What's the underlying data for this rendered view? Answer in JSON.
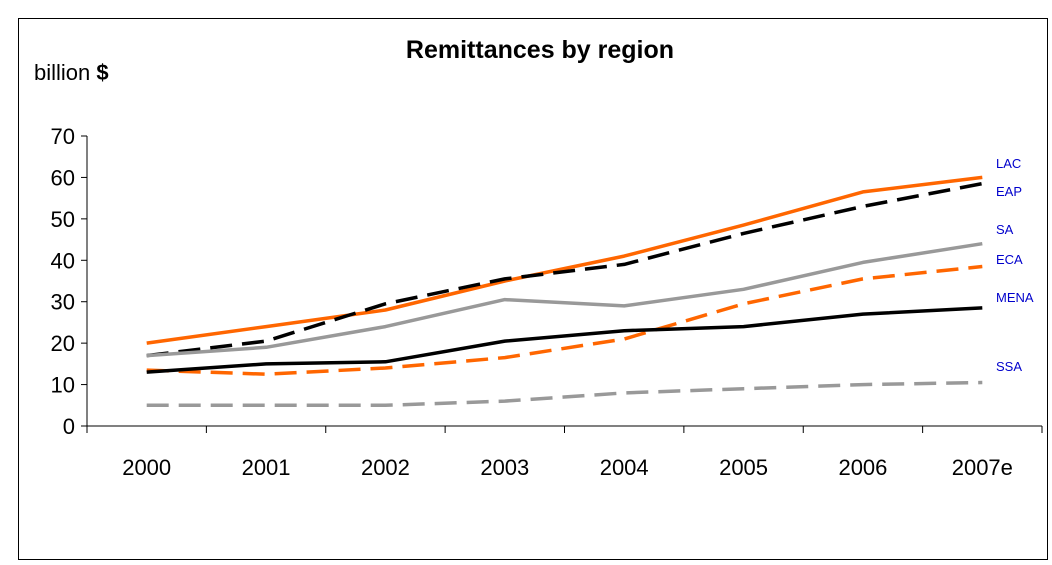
{
  "chart_data": {
    "type": "line",
    "title": "Remittances by region",
    "ylabel_prefix": "billion ",
    "ylabel_unit": "$",
    "xlabel": "",
    "categories": [
      "2000",
      "2001",
      "2002",
      "2003",
      "2004",
      "2005",
      "2006",
      "2007e"
    ],
    "ylim": [
      0,
      70
    ],
    "yticks": [
      0,
      10,
      20,
      30,
      40,
      50,
      60,
      70
    ],
    "grid": false,
    "legend": "inline-right",
    "label_color": "#0000cc",
    "series": [
      {
        "name": "LAC",
        "color": "#ff6600",
        "dash": "solid",
        "values": [
          20,
          24,
          28,
          35,
          41,
          48.5,
          56.5,
          60
        ]
      },
      {
        "name": "EAP",
        "color": "#000000",
        "dash": "dashed",
        "values": [
          17,
          20.5,
          29.5,
          35.5,
          39,
          46.5,
          53,
          58.5
        ]
      },
      {
        "name": "SA",
        "color": "#999999",
        "dash": "solid",
        "values": [
          17,
          19,
          24,
          30.5,
          29,
          33,
          39.5,
          44
        ]
      },
      {
        "name": "ECA",
        "color": "#ff6600",
        "dash": "dashed",
        "values": [
          13.5,
          12.5,
          14,
          16.5,
          21,
          29.5,
          35.5,
          38.5
        ]
      },
      {
        "name": "MENA",
        "color": "#000000",
        "dash": "solid",
        "values": [
          13,
          15,
          15.5,
          20.5,
          23,
          24,
          27,
          28.5
        ]
      },
      {
        "name": "SSA",
        "color": "#999999",
        "dash": "dashed",
        "values": [
          5,
          5,
          5,
          6,
          8,
          9,
          10,
          10.5
        ]
      }
    ]
  }
}
